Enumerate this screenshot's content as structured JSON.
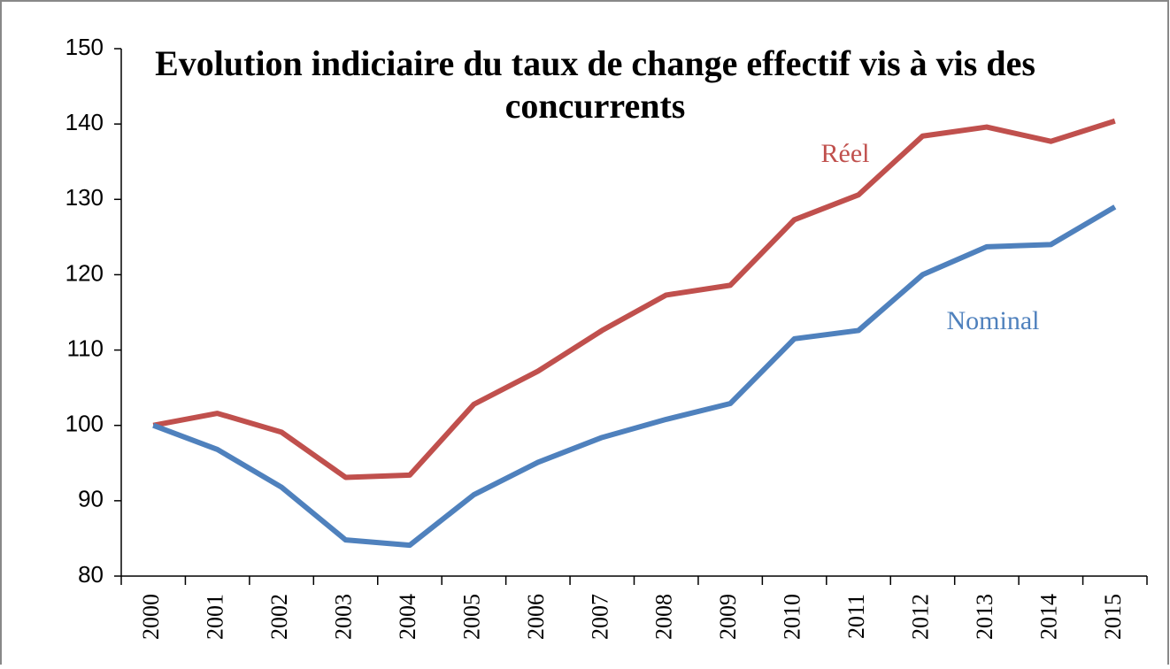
{
  "chart_data": {
    "type": "line",
    "title": "Evolution  indiciaire du taux de change effectif  vis à vis des concurrents",
    "categories": [
      "2000",
      "2001",
      "2002",
      "2003",
      "2004",
      "2005",
      "2006",
      "2007",
      "2008",
      "2009",
      "2010",
      "2011",
      "2012",
      "2013",
      "2014",
      "2015"
    ],
    "series": [
      {
        "name": "Réel",
        "color": "#c0504d",
        "values": [
          100,
          101.6,
          99.1,
          93.1,
          93.4,
          102.8,
          107.2,
          112.6,
          117.3,
          118.6,
          127.3,
          130.6,
          138.4,
          139.6,
          137.7,
          140.4
        ]
      },
      {
        "name": "Nominal",
        "color": "#4f81bd",
        "values": [
          100,
          96.8,
          91.8,
          84.8,
          84.1,
          90.8,
          95.1,
          98.4,
          100.8,
          102.9,
          111.5,
          112.6,
          120,
          123.7,
          124,
          129
        ]
      }
    ],
    "ylim": [
      80,
      150
    ],
    "yticks": [
      80,
      90,
      100,
      110,
      120,
      130,
      140,
      150
    ]
  }
}
